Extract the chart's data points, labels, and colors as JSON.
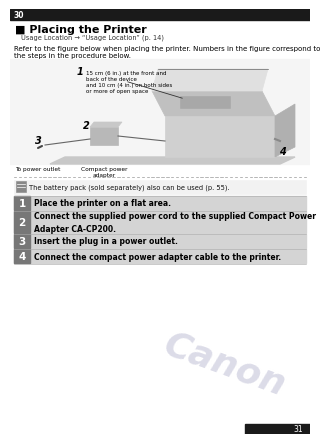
{
  "page_num": "30",
  "title": "■ Placing the Printer",
  "breadcrumb": "Usage Location → “Usage Location” (p. 14)",
  "intro_line1": "Refer to the figure below when placing the printer. Numbers in the figure correspond to",
  "intro_line2": "the steps in the procedure below.",
  "note_text": "The battery pack (sold separately) also can be used (p. 55).",
  "figure_label1_line1": "15 cm (6 in.) at the front and",
  "figure_label1_line2": "back of the device",
  "figure_label1_line3": "and 10 cm (4 in.) on both sides",
  "figure_label1_line4": "or more of open space",
  "figure_label_outlet": "To power outlet",
  "figure_label_adapter": "Compact power\nadapter",
  "steps": [
    {
      "num": "1",
      "text": "Place the printer on a flat area.",
      "lines": 1
    },
    {
      "num": "2",
      "text": "Connect the supplied power cord to the supplied Compact Power\nAdapter CA-CP200.",
      "lines": 2
    },
    {
      "num": "3",
      "text": "Insert the plug in a power outlet.",
      "lines": 1
    },
    {
      "num": "4",
      "text": "Connect the compact power adapter cable to the printer.",
      "lines": 1
    }
  ],
  "bg_color": "#ffffff",
  "header_bg": "#1a1a1a",
  "step_num_bg": "#777777",
  "step_bg": "#d4d4d4",
  "watermark_color": "#dcdce8",
  "title_color": "#000000",
  "text_color": "#000000",
  "footer_bg": "#1a1a1a"
}
